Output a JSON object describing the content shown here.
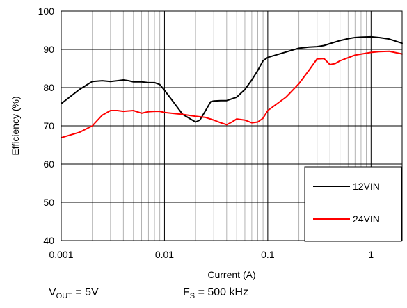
{
  "chart_data": {
    "type": "line",
    "title": "",
    "xlabel": "Current (A)",
    "ylabel": "Efficiency (%)",
    "x_scale": "log",
    "xlim": [
      0.001,
      2
    ],
    "ylim": [
      40,
      100
    ],
    "x_ticks": [
      0.001,
      0.01,
      0.1,
      1
    ],
    "x_tick_labels": [
      "0.001",
      "0.01",
      "0.1",
      "1"
    ],
    "y_ticks": [
      40,
      50,
      60,
      70,
      80,
      90,
      100
    ],
    "y_tick_labels": [
      "40",
      "50",
      "60",
      "70",
      "80",
      "90",
      "100"
    ],
    "grid": {
      "major_y": true,
      "major_x": true,
      "minor_x": true
    },
    "legend_position": "bottom-right",
    "series": [
      {
        "name": "12VIN",
        "color": "#000000",
        "points": [
          [
            0.001,
            75.8
          ],
          [
            0.0015,
            79.5
          ],
          [
            0.002,
            81.6
          ],
          [
            0.0025,
            81.8
          ],
          [
            0.003,
            81.6
          ],
          [
            0.0035,
            81.8
          ],
          [
            0.004,
            82.0
          ],
          [
            0.0045,
            81.8
          ],
          [
            0.005,
            81.5
          ],
          [
            0.006,
            81.5
          ],
          [
            0.007,
            81.3
          ],
          [
            0.008,
            81.3
          ],
          [
            0.009,
            80.8
          ],
          [
            0.01,
            79.3
          ],
          [
            0.012,
            76.5
          ],
          [
            0.015,
            73.0
          ],
          [
            0.02,
            71.0
          ],
          [
            0.022,
            71.5
          ],
          [
            0.025,
            74.0
          ],
          [
            0.028,
            76.3
          ],
          [
            0.03,
            76.5
          ],
          [
            0.035,
            76.6
          ],
          [
            0.04,
            76.6
          ],
          [
            0.05,
            77.5
          ],
          [
            0.06,
            79.5
          ],
          [
            0.07,
            82.0
          ],
          [
            0.08,
            84.5
          ],
          [
            0.09,
            87.0
          ],
          [
            0.1,
            87.9
          ],
          [
            0.15,
            89.3
          ],
          [
            0.2,
            90.3
          ],
          [
            0.25,
            90.6
          ],
          [
            0.3,
            90.7
          ],
          [
            0.35,
            91.0
          ],
          [
            0.4,
            91.5
          ],
          [
            0.5,
            92.3
          ],
          [
            0.6,
            92.8
          ],
          [
            0.7,
            93.1
          ],
          [
            0.8,
            93.2
          ],
          [
            1.0,
            93.3
          ],
          [
            1.2,
            93.1
          ],
          [
            1.5,
            92.7
          ],
          [
            2.0,
            91.6
          ]
        ]
      },
      {
        "name": "24VIN",
        "color": "#ff0000",
        "points": [
          [
            0.001,
            66.9
          ],
          [
            0.0015,
            68.3
          ],
          [
            0.002,
            70.0
          ],
          [
            0.0025,
            72.8
          ],
          [
            0.003,
            74.0
          ],
          [
            0.0035,
            74.0
          ],
          [
            0.004,
            73.8
          ],
          [
            0.005,
            74.0
          ],
          [
            0.006,
            73.3
          ],
          [
            0.007,
            73.7
          ],
          [
            0.008,
            73.8
          ],
          [
            0.009,
            73.8
          ],
          [
            0.01,
            73.5
          ],
          [
            0.015,
            73.0
          ],
          [
            0.02,
            72.5
          ],
          [
            0.025,
            72.2
          ],
          [
            0.03,
            71.5
          ],
          [
            0.035,
            70.8
          ],
          [
            0.04,
            70.3
          ],
          [
            0.045,
            71.0
          ],
          [
            0.05,
            71.8
          ],
          [
            0.06,
            71.5
          ],
          [
            0.07,
            70.8
          ],
          [
            0.08,
            71.0
          ],
          [
            0.09,
            72.0
          ],
          [
            0.1,
            74.0
          ],
          [
            0.15,
            77.5
          ],
          [
            0.2,
            81.0
          ],
          [
            0.25,
            84.5
          ],
          [
            0.3,
            87.5
          ],
          [
            0.35,
            87.6
          ],
          [
            0.4,
            86.0
          ],
          [
            0.45,
            86.3
          ],
          [
            0.5,
            87.0
          ],
          [
            0.7,
            88.5
          ],
          [
            1.0,
            89.2
          ],
          [
            1.2,
            89.4
          ],
          [
            1.5,
            89.5
          ],
          [
            2.0,
            88.8
          ]
        ]
      }
    ]
  },
  "notes": {
    "vout_prefix": "V",
    "vout_sub": "OUT",
    "vout_value": " = 5V",
    "fs_prefix": "F",
    "fs_sub": "S",
    "fs_value": " = 500 kHz"
  }
}
